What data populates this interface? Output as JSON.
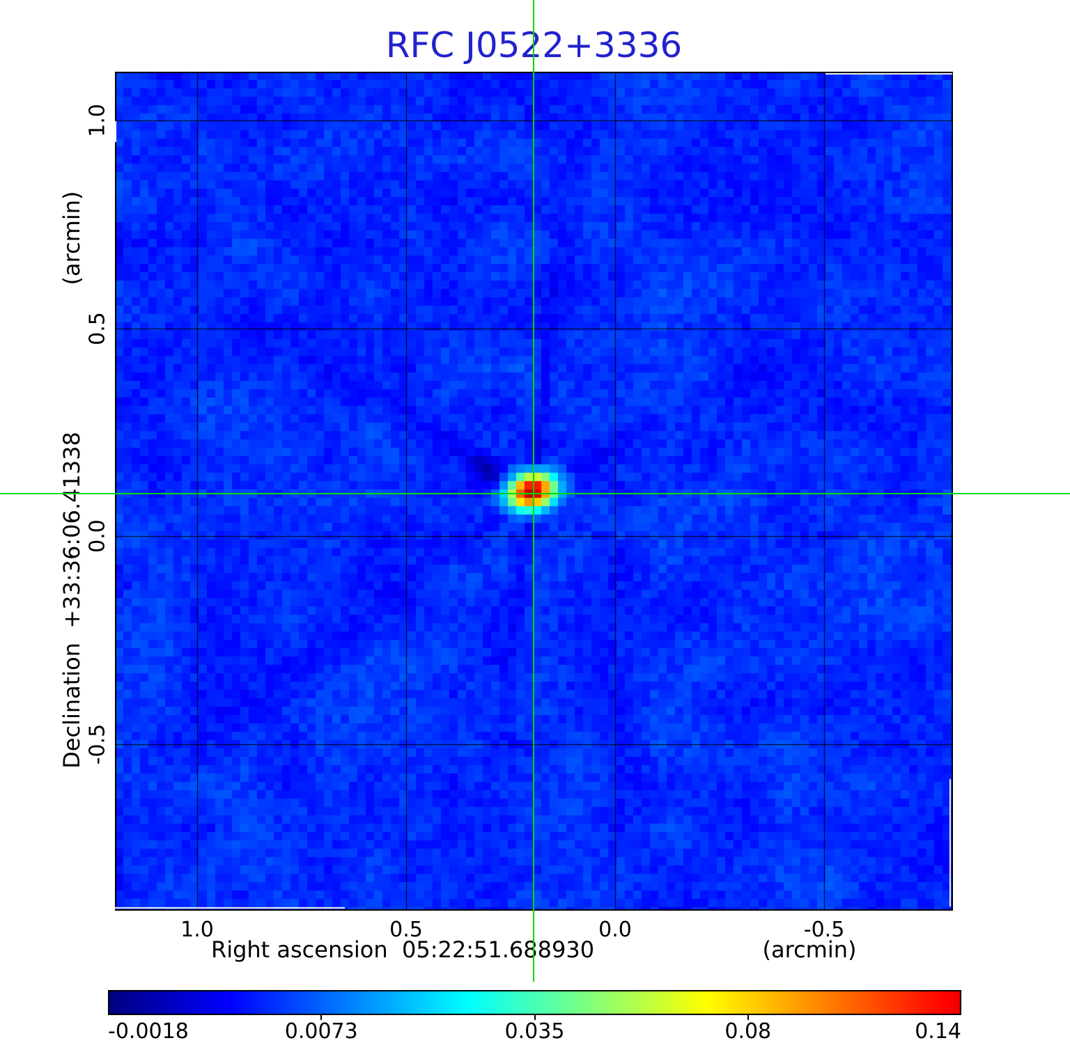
{
  "figure": {
    "title": "RFC J0522+3336",
    "title_color": "#2222cc"
  },
  "axes": {
    "x": {
      "label": "Right ascension  05:22:51.688930",
      "unit": "(arcmin)",
      "tick_labels": [
        "1.0",
        "0.5",
        "0.0",
        "-0.5"
      ]
    },
    "y": {
      "label": "Declination  +33:36:06.41338",
      "unit": "(arcmin)",
      "tick_labels": [
        "1.0",
        "0.5",
        "0.0",
        "-0.5"
      ]
    }
  },
  "colorbar": {
    "tick_labels": [
      "-0.0018",
      "0.0073",
      "0.035",
      "0.08",
      "0.14"
    ],
    "colormap": "jet"
  },
  "chart_data": {
    "type": "heatmap",
    "title": "RFC J0522+3336",
    "xlabel": "Right ascension 05:22:51.688930 (arcmin)",
    "ylabel": "Declination +33:36:06.41338 (arcmin)",
    "xlim": [
      1.1967,
      -0.8083
    ],
    "ylim": [
      -0.9009,
      1.1173
    ],
    "xticks": [
      1.0,
      0.5,
      0.0,
      -0.5
    ],
    "yticks": [
      1.0,
      0.5,
      0.0,
      -0.5
    ],
    "grid": true,
    "grid_color": "#000000",
    "crosshair": {
      "x_arcmin": 0.1945,
      "y_arcmin": 0.103,
      "color": "#00d800"
    },
    "source": {
      "x_arcmin": 0.199,
      "y_arcmin": 0.108,
      "peak": 0.155,
      "sigma_maj_arcmin": 0.033,
      "sigma_min_arcmin": 0.024,
      "pa_deg": -15
    },
    "background_level": 0.005,
    "noise_sigma": 0.0011,
    "colorbar_values": [
      -0.0018,
      0.0073,
      0.035,
      0.08,
      0.14
    ],
    "colormap": "jet",
    "artifacts": {
      "dark_spot_arcmin": {
        "x": 0.31,
        "y": 0.16
      },
      "sidelobe_streak_angles_deg": [
        -83,
        97,
        -150,
        142,
        -28,
        35,
        183,
        -2
      ],
      "white_edge_segments": [
        "top-right",
        "bottom-left",
        "right-lower",
        "left-top"
      ]
    }
  }
}
